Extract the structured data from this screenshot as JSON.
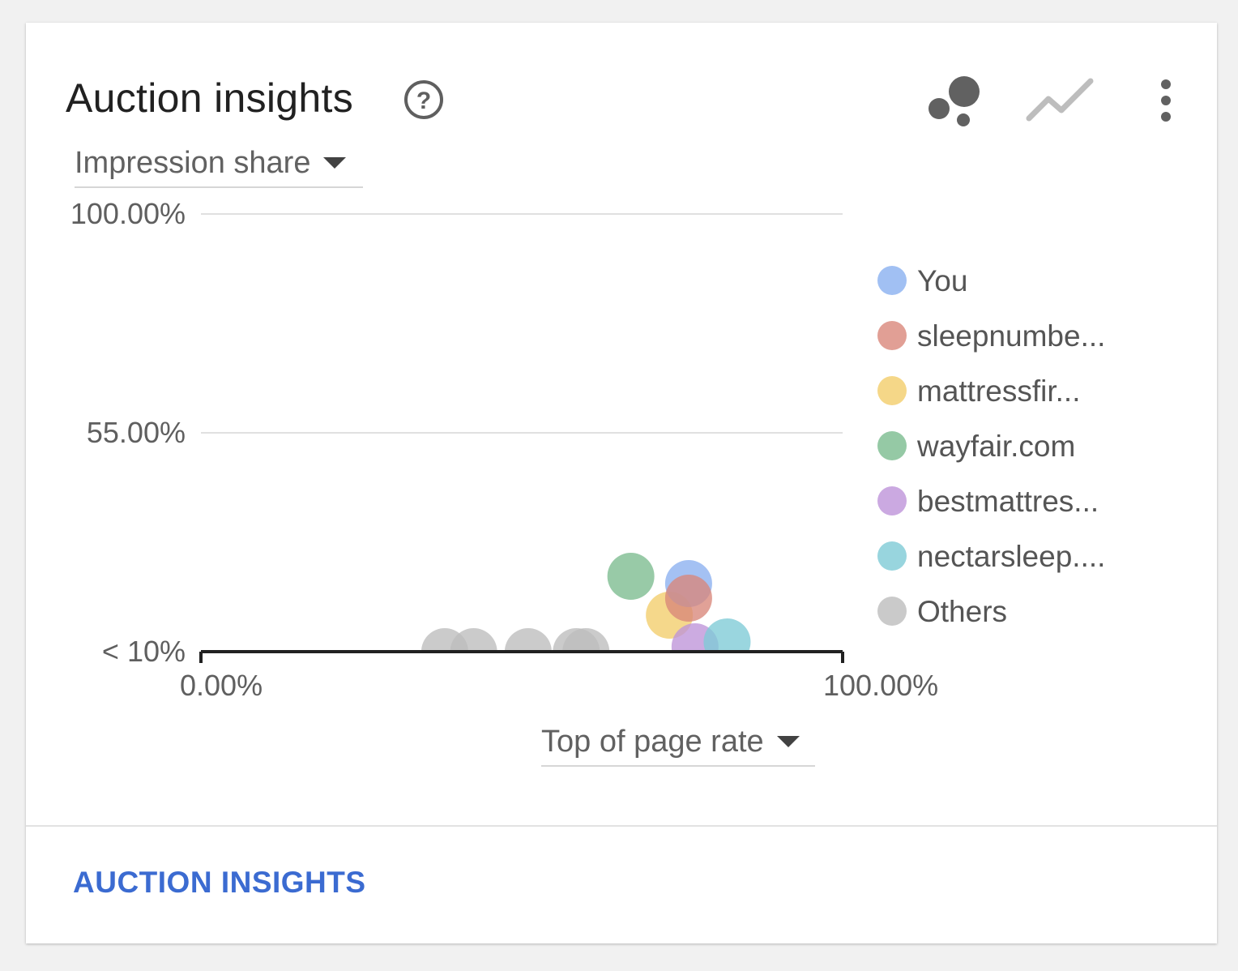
{
  "card": {
    "title": "Auction insights",
    "metric_dropdown": "Impression share",
    "xaxis_dropdown": "Top of page rate",
    "footer_link": "AUCTION INSIGHTS"
  },
  "icons": {
    "help": "help-circle-icon",
    "bubble_view": "bubble-chart-icon",
    "line_view": "line-chart-icon",
    "more": "more-vert-icon"
  },
  "chart_data": {
    "type": "scatter",
    "title": "",
    "xlabel": "Top of page rate",
    "ylabel": "Impression share",
    "xlim": [
      0,
      100
    ],
    "ylim": [
      10,
      100
    ],
    "x_tick_labels": [
      {
        "value": 0,
        "label": "0.00%"
      },
      {
        "value": 100,
        "label": "100.00%"
      }
    ],
    "y_tick_labels": [
      {
        "value": 100,
        "label": "100.00%"
      },
      {
        "value": 55,
        "label": "55.00%"
      },
      {
        "value": 10,
        "label": "< 10%"
      }
    ],
    "grid": true,
    "legend_position": "right",
    "series": [
      {
        "name": "You",
        "color": "#8ab0f0",
        "points": [
          {
            "x": 76,
            "y": 24
          }
        ]
      },
      {
        "name": "sleepnumbe...",
        "color": "#d9877a",
        "points": [
          {
            "x": 76,
            "y": 21
          }
        ]
      },
      {
        "name": "mattressfir...",
        "color": "#f2cd6a",
        "points": [
          {
            "x": 73,
            "y": 17.5
          }
        ]
      },
      {
        "name": "wayfair.com",
        "color": "#7bbb8e",
        "points": [
          {
            "x": 67,
            "y": 25.5
          }
        ]
      },
      {
        "name": "bestmattres...",
        "color": "#be94d9",
        "points": [
          {
            "x": 77,
            "y": 11
          }
        ]
      },
      {
        "name": "nectarsleep....",
        "color": "#7ecbd6",
        "points": [
          {
            "x": 82,
            "y": 12
          }
        ]
      },
      {
        "name": "Others",
        "color": "#bdbdbd",
        "points": [
          {
            "x": 38,
            "y": 10
          },
          {
            "x": 42.5,
            "y": 10
          },
          {
            "x": 51,
            "y": 10
          },
          {
            "x": 58.5,
            "y": 10
          },
          {
            "x": 60,
            "y": 10
          }
        ]
      }
    ]
  }
}
